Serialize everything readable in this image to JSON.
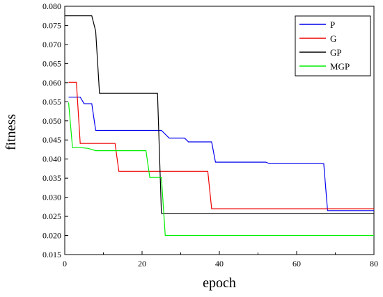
{
  "chart_data": {
    "type": "line",
    "xlabel": "epoch",
    "ylabel": "fitness",
    "xlim": [
      0,
      80
    ],
    "ylim": [
      0.015,
      0.08
    ],
    "xticks": [
      0,
      20,
      40,
      60,
      80
    ],
    "xtick_labels": [
      "0",
      "20",
      "40",
      "60",
      "80"
    ],
    "yticks": [
      0.015,
      0.02,
      0.025,
      0.03,
      0.035,
      0.04,
      0.045,
      0.05,
      0.055,
      0.06,
      0.065,
      0.07,
      0.075,
      0.08
    ],
    "ytick_labels": [
      "0.015",
      "0.020",
      "0.025",
      "0.030",
      "0.035",
      "0.040",
      "0.045",
      "0.050",
      "0.055",
      "0.060",
      "0.065",
      "0.070",
      "0.075",
      "0.080"
    ],
    "grid": false,
    "legend_position": "top-right",
    "series": [
      {
        "name": "P",
        "color": "#0000ee",
        "points": [
          [
            1,
            0.0562
          ],
          [
            4,
            0.0562
          ],
          [
            5,
            0.0545
          ],
          [
            7,
            0.0545
          ],
          [
            8,
            0.0475
          ],
          [
            25,
            0.0475
          ],
          [
            27,
            0.0455
          ],
          [
            31,
            0.0455
          ],
          [
            32,
            0.0445
          ],
          [
            38,
            0.0445
          ],
          [
            39,
            0.0392
          ],
          [
            52,
            0.0392
          ],
          [
            53,
            0.0388
          ],
          [
            67,
            0.0388
          ],
          [
            68,
            0.0265
          ],
          [
            80,
            0.0265
          ]
        ]
      },
      {
        "name": "G",
        "color": "#ee0000",
        "points": [
          [
            1,
            0.0601
          ],
          [
            3,
            0.0601
          ],
          [
            4,
            0.0441
          ],
          [
            13,
            0.0441
          ],
          [
            14,
            0.0368
          ],
          [
            37,
            0.0368
          ],
          [
            38,
            0.027
          ],
          [
            80,
            0.027
          ]
        ]
      },
      {
        "name": "GP",
        "color": "#000000",
        "points": [
          [
            0,
            0.0775
          ],
          [
            7,
            0.0775
          ],
          [
            8,
            0.0735
          ],
          [
            9,
            0.0572
          ],
          [
            24,
            0.0572
          ],
          [
            25,
            0.0258
          ],
          [
            80,
            0.0258
          ]
        ]
      },
      {
        "name": "MGP",
        "color": "#00ee00",
        "points": [
          [
            1,
            0.0548
          ],
          [
            2,
            0.043
          ],
          [
            4,
            0.043
          ],
          [
            6,
            0.0428
          ],
          [
            8,
            0.0422
          ],
          [
            21,
            0.0422
          ],
          [
            22,
            0.0352
          ],
          [
            25,
            0.0352
          ],
          [
            26,
            0.02
          ],
          [
            80,
            0.02
          ]
        ]
      }
    ]
  }
}
